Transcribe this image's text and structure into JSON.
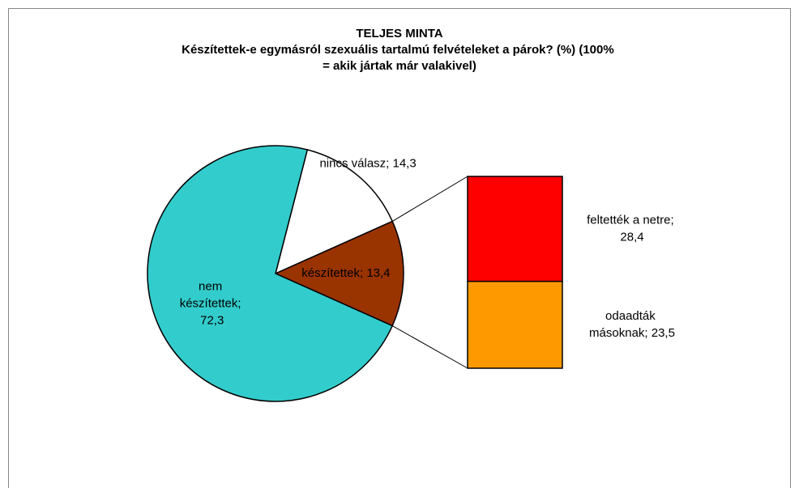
{
  "chart_data": {
    "type": "pie",
    "title": "TELJES MINTA",
    "subtitle": "Készítettek-e egymásról szexuális tartalmú felvételeket a párok? (%) (100% = akik jártak már valakivel)",
    "categories": [
      "nincs válasz",
      "készítettek",
      "nem készítettek"
    ],
    "values": [
      14.3,
      13.4,
      72.3
    ],
    "colors": [
      "#ffffff",
      "#993300",
      "#33cccc"
    ],
    "data_labels": [
      "nincs válasz; 14,3",
      "készítettek; 13,4",
      "nem készítettek; 72,3"
    ],
    "breakdown": {
      "type": "bar",
      "categories": [
        "feltették a netre",
        "odaadták másoknak"
      ],
      "values": [
        28.4,
        23.5
      ],
      "colors": [
        "#ff0000",
        "#ff9900"
      ],
      "data_labels": [
        "feltették a netre; 28,4",
        "odaadták másoknak; 23,5"
      ]
    }
  }
}
